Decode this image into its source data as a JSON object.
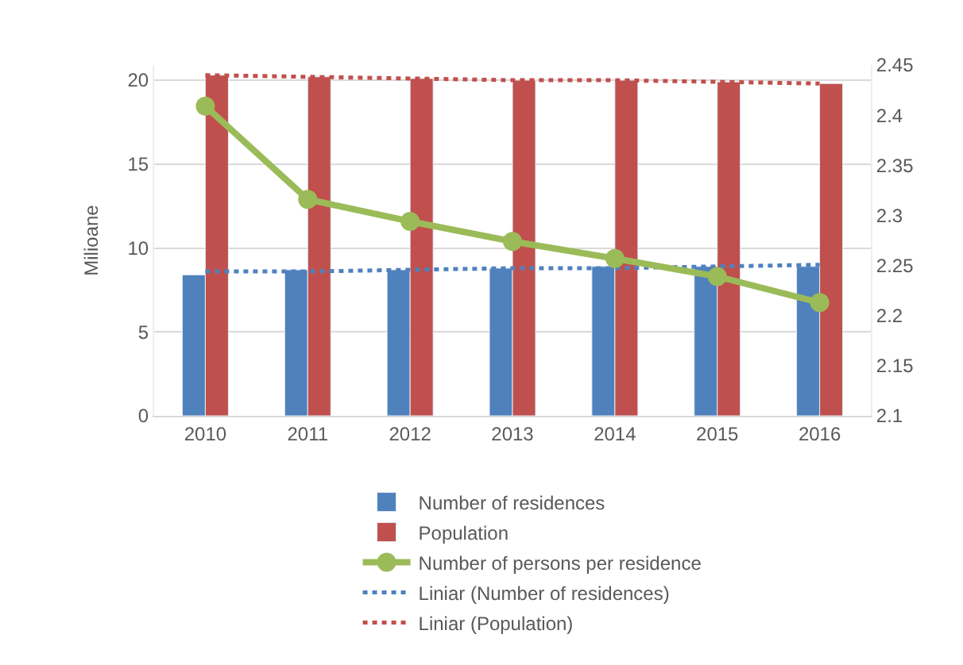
{
  "chart_data": {
    "type": "bar",
    "ylabel": "Milioane",
    "categories": [
      "2010",
      "2011",
      "2012",
      "2013",
      "2014",
      "2015",
      "2016"
    ],
    "series": [
      {
        "name": "Number of residences",
        "color": "#4f81bd",
        "values": [
          8.4,
          8.7,
          8.7,
          8.8,
          8.9,
          8.9,
          8.9
        ]
      },
      {
        "name": "Population",
        "color": "#c0504d",
        "values": [
          20.3,
          20.2,
          20.1,
          20.0,
          20.0,
          19.9,
          19.8
        ]
      },
      {
        "name": "Number of persons per residence",
        "type": "line",
        "axis": "y2",
        "color": "#9bbb59",
        "marker": "circle",
        "line_style": "solid",
        "values": [
          2.409,
          2.316,
          2.294,
          2.274,
          2.257,
          2.239,
          2.213
        ]
      },
      {
        "name": "Liniar (Number of residences)",
        "type": "line",
        "color": "#4f81bd",
        "marker": "none",
        "line_style": "dotted",
        "values": [
          8.6,
          8.6,
          8.7,
          8.8,
          8.8,
          8.9,
          9.0
        ]
      },
      {
        "name": "Liniar (Population)",
        "type": "line",
        "color": "#c0504d",
        "marker": "none",
        "line_style": "dotted",
        "values": [
          20.3,
          20.2,
          20.1,
          20.0,
          20.0,
          19.9,
          19.8
        ]
      }
    ],
    "ylim": [
      0,
      20.9
    ],
    "yticks": [
      0,
      5,
      10,
      15,
      20
    ],
    "y2lim": [
      2.1,
      2.45
    ],
    "y2ticks": [
      2.1,
      2.15,
      2.2,
      2.25,
      2.3,
      2.35,
      2.4,
      2.45
    ],
    "grid": "y",
    "legend": "bottom"
  }
}
